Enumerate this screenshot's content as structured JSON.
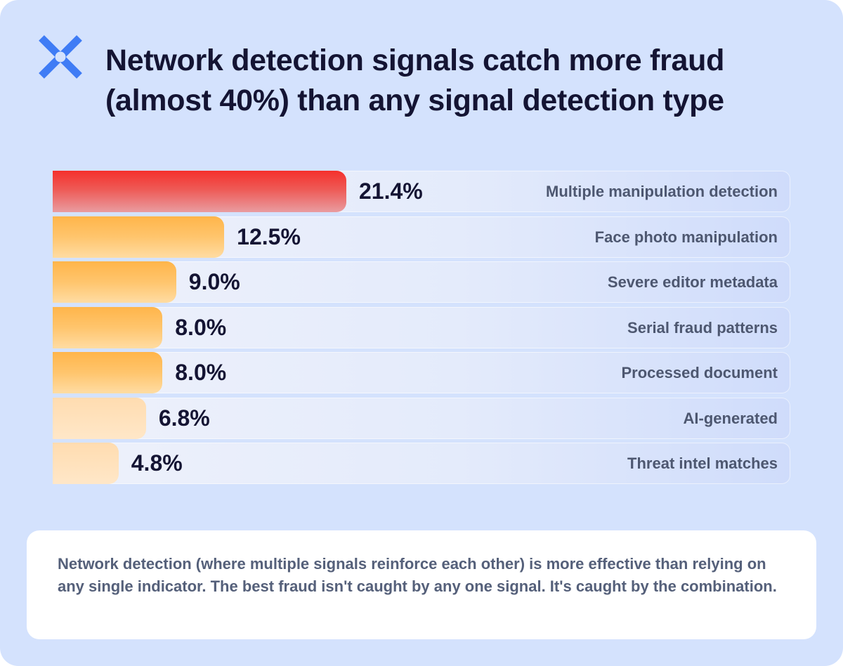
{
  "title": "Network detection signals catch more fraud (almost 40%) than any signal detection type",
  "colors": {
    "background": "#d4e2fd",
    "top_bar": "#f5302c",
    "mid_bars": "#ffb54a",
    "low_bars": "#ffdcb0",
    "title": "#141433",
    "label": "#4d5770"
  },
  "chart_data": {
    "type": "bar",
    "orientation": "horizontal",
    "categories": [
      "Multiple manipulation detection",
      "Face photo manipulation",
      "Severe editor metadata",
      "Serial fraud patterns",
      "Processed document",
      "AI-generated",
      "Threat intel matches"
    ],
    "values": [
      21.4,
      12.5,
      9.0,
      8.0,
      8.0,
      6.8,
      4.8
    ],
    "value_labels": [
      "21.4%",
      "12.5%",
      "9.0%",
      "8.0%",
      "8.0%",
      "6.8%",
      "4.8%"
    ],
    "unit": "%",
    "xlim": [
      0,
      100
    ],
    "grid": false,
    "legend": "none"
  },
  "note": "Network detection (where multiple signals reinforce each other) is more effective than relying on any single indicator. The best fraud isn't caught by any one signal. It's caught by the combination."
}
